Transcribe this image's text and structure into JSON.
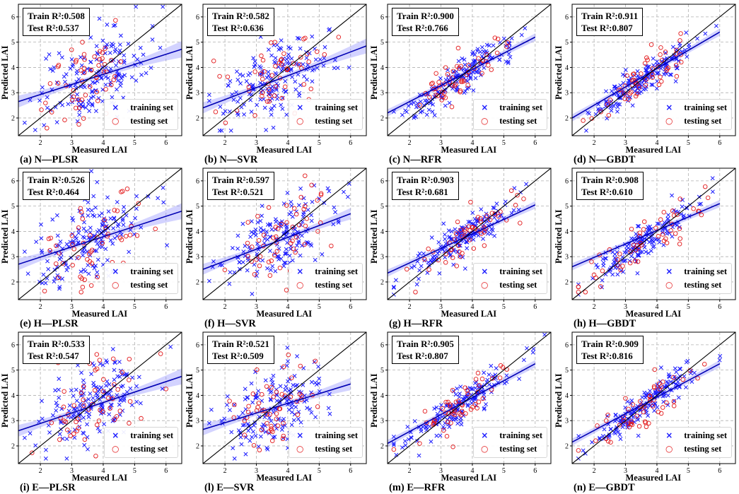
{
  "colors": {
    "training": "#1a1aff",
    "testing": "#e31a1c",
    "fit_line": "#0000b3",
    "ci_band": "#8080ff",
    "identity": "#000000",
    "grid": "#b0b0b0"
  },
  "axes_common": {
    "xlabel": "Measured LAI",
    "ylabel": "Predicted LAI",
    "xlim": [
      1.3,
      6.5
    ],
    "ylim": [
      1.3,
      6.5
    ],
    "xticks": [
      2,
      3,
      4,
      5,
      6
    ],
    "yticks": [
      2,
      3,
      4,
      5,
      6
    ],
    "grid": true,
    "legend_placement": "lower-right"
  },
  "legend": {
    "training_label": "training set",
    "training_icon": "x-marker",
    "testing_label": "testing set",
    "testing_icon": "circle-marker"
  },
  "chart_data": [
    {
      "type": "scatter",
      "caption": "(a) N—PLSR",
      "train_r2_text": "Train R²:0.508",
      "test_r2_text": "Test R²:0.537",
      "train_r2": 0.508,
      "test_r2": 0.537,
      "fit_line": {
        "x": [
          1.3,
          6.5
        ],
        "y": [
          2.65,
          4.72
        ]
      }
    },
    {
      "type": "scatter",
      "caption": "(b) N—SVR",
      "train_r2_text": "Train R²:0.582",
      "test_r2_text": "Test R²:0.636",
      "train_r2": 0.582,
      "test_r2": 0.636,
      "fit_line": {
        "x": [
          1.3,
          6.5
        ],
        "y": [
          2.4,
          4.85
        ]
      }
    },
    {
      "type": "scatter",
      "caption": "(c) N—RFR",
      "train_r2_text": "Train R²:0.900",
      "test_r2_text": "Test R²:0.766",
      "train_r2": 0.9,
      "test_r2": 0.766,
      "fit_line": {
        "x": [
          1.3,
          6.0
        ],
        "y": [
          2.2,
          5.2
        ]
      }
    },
    {
      "type": "scatter",
      "caption": "(d) N—GBDT",
      "train_r2_text": "Train R²:0.911",
      "test_r2_text": "Test R²:0.807",
      "train_r2": 0.911,
      "test_r2": 0.807,
      "fit_line": {
        "x": [
          1.3,
          6.0
        ],
        "y": [
          2.0,
          5.4
        ]
      }
    },
    {
      "type": "scatter",
      "caption": "(e) H—PLSR",
      "train_r2_text": "Train R²:0.526",
      "test_r2_text": "Test R²:0.464",
      "train_r2": 0.526,
      "test_r2": 0.464,
      "fit_line": {
        "x": [
          1.3,
          6.5
        ],
        "y": [
          2.7,
          4.8
        ]
      }
    },
    {
      "type": "scatter",
      "caption": "(f) H—SVR",
      "train_r2_text": "Train R²:0.597",
      "test_r2_text": "Test R²:0.521",
      "train_r2": 0.597,
      "test_r2": 0.521,
      "fit_line": {
        "x": [
          1.3,
          6.0
        ],
        "y": [
          2.5,
          4.7
        ]
      }
    },
    {
      "type": "scatter",
      "caption": "(g) H—RFR",
      "train_r2_text": "Train R²:0.903",
      "test_r2_text": "Test R²:0.681",
      "train_r2": 0.903,
      "test_r2": 0.681,
      "fit_line": {
        "x": [
          1.3,
          6.0
        ],
        "y": [
          2.35,
          5.05
        ]
      }
    },
    {
      "type": "scatter",
      "caption": "(h) H—GBDT",
      "train_r2_text": "Train R²:0.908",
      "test_r2_text": "Test R²:0.610",
      "train_r2": 0.908,
      "test_r2": 0.61,
      "fit_line": {
        "x": [
          1.3,
          6.0
        ],
        "y": [
          2.6,
          5.1
        ]
      }
    },
    {
      "type": "scatter",
      "caption": "(i) E—PLSR",
      "train_r2_text": "Train R²:0.533",
      "test_r2_text": "Test R²:0.547",
      "train_r2": 0.533,
      "test_r2": 0.547,
      "fit_line": {
        "x": [
          1.3,
          6.5
        ],
        "y": [
          2.6,
          4.75
        ]
      }
    },
    {
      "type": "scatter",
      "caption": "(l) E—SVR",
      "train_r2_text": "Train R²:0.521",
      "test_r2_text": "Test R²:0.509",
      "train_r2": 0.521,
      "test_r2": 0.509,
      "fit_line": {
        "x": [
          1.3,
          6.0
        ],
        "y": [
          2.65,
          4.45
        ]
      }
    },
    {
      "type": "scatter",
      "caption": "(m) E—RFR",
      "train_r2_text": "Train R²:0.905",
      "test_r2_text": "Test R²:0.807",
      "train_r2": 0.905,
      "test_r2": 0.807,
      "fit_line": {
        "x": [
          1.3,
          6.0
        ],
        "y": [
          2.1,
          5.25
        ]
      }
    },
    {
      "type": "scatter",
      "caption": "(n) E—GBDT",
      "train_r2_text": "Train R²:0.909",
      "test_r2_text": "Test R²:0.816",
      "train_r2": 0.909,
      "test_r2": 0.816,
      "fit_line": {
        "x": [
          1.3,
          6.0
        ],
        "y": [
          2.15,
          5.25
        ]
      }
    }
  ]
}
